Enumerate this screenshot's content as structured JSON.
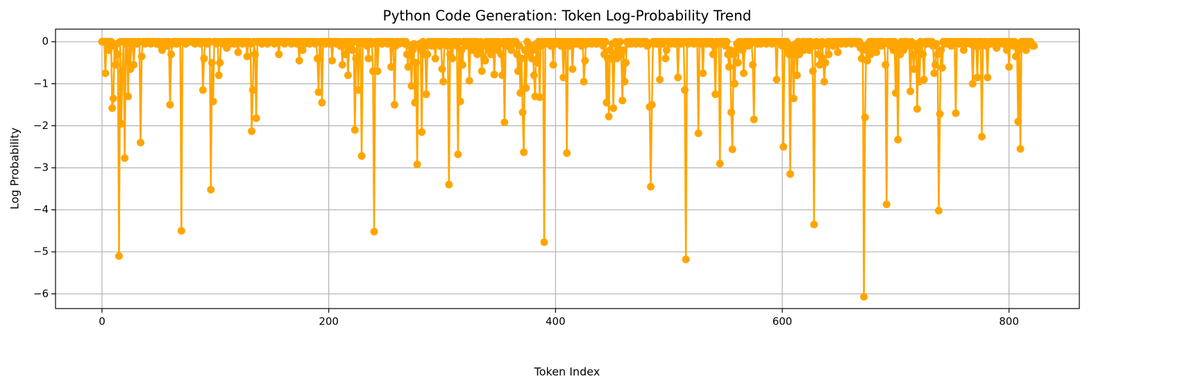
{
  "chart_data": {
    "type": "line",
    "title": "Python Code Generation: Token Log-Probability Trend",
    "xlabel": "Token Index",
    "ylabel": "Log Probability",
    "color": "#ffa500",
    "grid": true,
    "xlim": [
      -41,
      862
    ],
    "xticks": [
      0,
      200,
      400,
      600,
      800
    ],
    "ylim": [
      -6.35,
      0.3
    ],
    "yticks": [
      0,
      {
        "value": -1,
        "label": "−1"
      },
      {
        "value": -2,
        "label": "−2"
      },
      {
        "value": -3,
        "label": "−3"
      },
      {
        "value": -4,
        "label": "−4"
      },
      {
        "value": -5,
        "label": "−5"
      },
      {
        "value": -6,
        "label": "−6"
      }
    ],
    "values": [
      0,
      0,
      0,
      -0.75,
      0,
      0,
      -0.2,
      0,
      0,
      -1.58,
      -1.35,
      -0.1,
      -0.55,
      -0.05,
      -0.3,
      -5.1,
      0,
      -1.95,
      -0.7,
      0,
      -2.77,
      -0.05,
      0,
      -1.3,
      0,
      -0.65,
      -0.05,
      0,
      -0.55,
      0,
      0,
      -0.05,
      0,
      0,
      -2.4,
      -0.35,
      0,
      0,
      -0.05,
      0,
      0,
      0,
      0,
      -0.05,
      0,
      0,
      0,
      0,
      -0.05,
      0,
      0,
      0,
      -0.1,
      -0.2,
      0,
      -0.05,
      0,
      0,
      -0.1,
      0,
      -1.5,
      -0.3,
      -0.05,
      0,
      0,
      0,
      -0.05,
      0,
      0,
      0,
      -4.5,
      0,
      0,
      0,
      -0.05,
      0,
      0,
      0,
      0,
      0,
      0,
      0,
      -0.05,
      0,
      0,
      0,
      0,
      -0.05,
      0,
      -1.15,
      -0.4,
      0,
      0,
      -0.05,
      0,
      0,
      -3.52,
      -0.5,
      -1.42,
      0,
      0,
      -0.05,
      0,
      -0.8,
      -0.5,
      0,
      0,
      -0.05,
      0,
      0,
      -0.15,
      0,
      0,
      -0.05,
      0,
      0,
      0,
      -0.05,
      0,
      0,
      -0.25,
      0,
      0,
      0,
      -0.05,
      0,
      0,
      0,
      -0.35,
      0,
      0,
      -0.05,
      -2.13,
      -1.15,
      0,
      -0.3,
      -1.82,
      0,
      0,
      0,
      0,
      -0.05,
      0,
      0,
      0,
      0,
      -0.05,
      0,
      0,
      0,
      0,
      0,
      -0.05,
      0,
      0,
      0,
      -0.3,
      0,
      0,
      0,
      0,
      -0.05,
      0,
      0,
      0,
      0,
      0,
      -0.05,
      0,
      0,
      0,
      0,
      -0.05,
      0,
      -0.45,
      0,
      0,
      -0.2,
      0,
      -0.05,
      0,
      0,
      0,
      -0.05,
      0,
      0,
      0,
      0,
      -0.05,
      0,
      -0.4,
      -1.2,
      0,
      0,
      -1.45,
      0,
      0,
      -0.05,
      0,
      0,
      0,
      -0.05,
      0,
      -0.45,
      0,
      0,
      0,
      -0.05,
      0,
      0,
      -0.1,
      0,
      -0.55,
      -0.05,
      0,
      -0.3,
      0,
      -0.8,
      -0.1,
      0,
      -0.05,
      -0.2,
      0,
      -2.1,
      -0.4,
      0,
      -1.15,
      -0.05,
      0,
      -2.72,
      0,
      -0.05,
      0,
      0,
      -0.1,
      -0.4,
      0,
      -0.05,
      0,
      -0.7,
      -4.52,
      -0.05,
      0,
      -0.7,
      0,
      0,
      0,
      -0.05,
      0,
      0,
      0,
      0,
      -0.05,
      0,
      0,
      -0.6,
      0,
      0,
      -1.5,
      -0.1,
      0,
      0,
      -0.05,
      0,
      0,
      0,
      0,
      -0.05,
      0,
      -0.3,
      -0.6,
      -0.1,
      -0.3,
      -1.05,
      -0.2,
      -0.05,
      -1.45,
      -0.5,
      -2.92,
      -0.1,
      -0.05,
      -0.2,
      -2.15,
      0,
      -0.3,
      -0.1,
      -1.25,
      -0.3,
      0,
      -0.05,
      0,
      -0.1,
      0,
      0,
      -0.4,
      0,
      -0.05,
      0,
      -0.1,
      0,
      -0.65,
      -0.95,
      0,
      -0.05,
      0,
      -0.1,
      -3.4,
      -0.3,
      0,
      -0.4,
      0,
      -0.05,
      0,
      -0.1,
      -2.68,
      0,
      -1.42,
      -0.2,
      -0.55,
      0,
      -0.05,
      0,
      -0.1,
      0,
      -0.93,
      0,
      -0.05,
      -0.2,
      0,
      -0.1,
      0,
      -0.3,
      -0.05,
      -0.2,
      0,
      -0.7,
      -0.1,
      -0.4,
      -0.45,
      0,
      -0.05,
      -0.2,
      0,
      -0.3,
      -0.1,
      0,
      -0.78,
      -0.05,
      0,
      -0.2,
      0,
      -0.05,
      -0.3,
      -0.8,
      0,
      -1.92,
      -0.1,
      0,
      -0.05,
      0,
      -0.1,
      -0.2,
      0,
      -0.05,
      0,
      0,
      -0.3,
      -0.7,
      -0.1,
      -1.22,
      -0.4,
      -1.68,
      -2.63,
      -0.2,
      -1.1,
      0,
      -0.05,
      -0.3,
      -0.1,
      -0.4,
      -0.2,
      -0.8,
      -1.3,
      -0.05,
      -0.5,
      0,
      -1.32,
      -0.1,
      0,
      -0.05,
      -4.77,
      0,
      0,
      -0.05,
      0,
      0,
      -0.1,
      0,
      -0.55,
      0,
      0,
      -0.05,
      0,
      0,
      0,
      -0.1,
      0,
      -0.85,
      0,
      -0.05,
      -2.65,
      0,
      -0.1,
      0,
      -0.05,
      -0.65,
      0,
      0,
      -0.05,
      0,
      0,
      -0.05,
      0,
      -0.1,
      0,
      -0.95,
      -0.45,
      0,
      -0.05,
      0,
      0,
      0,
      -0.05,
      0,
      0,
      0,
      -0.05,
      0,
      0,
      0,
      -0.05,
      0,
      -0.1,
      -0.3,
      0,
      -1.45,
      -0.4,
      -1.78,
      -0.2,
      -0.4,
      -0.05,
      -1.58,
      -0.3,
      0,
      -0.4,
      -0.05,
      -0.2,
      0,
      -0.3,
      -1.4,
      -0.2,
      -0.95,
      -0.5,
      0,
      -0.05,
      0,
      0,
      -0.05,
      0,
      0,
      0,
      -0.05,
      0,
      0,
      0,
      -0.05,
      0,
      0,
      0,
      -0.05,
      0,
      -0.1,
      -0.05,
      -1.55,
      -3.45,
      -1.5,
      0,
      -0.05,
      0,
      0,
      -0.05,
      0,
      -0.9,
      0,
      -0.05,
      0,
      0,
      -0.4,
      -0.2,
      0,
      0,
      -0.05,
      0,
      0,
      0,
      -0.05,
      0,
      0,
      -0.85,
      0,
      0,
      -0.05,
      0,
      0,
      -1.15,
      -5.18,
      0,
      -0.05,
      0,
      0,
      0,
      0,
      -0.05,
      0,
      0,
      0,
      -2.18,
      0,
      -0.05,
      0,
      -0.75,
      0,
      0,
      -0.05,
      0,
      0,
      0,
      -0.05,
      0,
      -0.3,
      -0.1,
      -1.25,
      0,
      -0.05,
      0,
      -2.9,
      0,
      0,
      -0.05,
      0,
      -0.1,
      0,
      -0.3,
      -0.6,
      -0.2,
      -1.68,
      -2.56,
      -0.3,
      -1.0,
      -0.2,
      -0.05,
      -0.5,
      0,
      -0.1,
      0,
      -0.2,
      -0.75,
      0,
      -0.05,
      0,
      -0.1,
      0,
      -0.05,
      0,
      -0.55,
      -1.85,
      0,
      0,
      -0.05,
      0,
      0,
      -0.05,
      0,
      0,
      0,
      0,
      -0.05,
      0,
      0,
      0,
      0,
      -0.05,
      0,
      0,
      0,
      -0.9,
      0,
      0,
      -0.05,
      0,
      -0.1,
      -2.5,
      0,
      -0.05,
      0,
      -0.2,
      -0.3,
      -3.15,
      -0.1,
      -0.3,
      -1.35,
      -0.2,
      -0.05,
      -0.8,
      0,
      -0.3,
      -0.05,
      -0.1,
      0,
      -0.2,
      0,
      -0.05,
      -0.1,
      0,
      -0.2,
      0,
      -0.05,
      -0.7,
      -4.35,
      -0.1,
      0,
      -0.05,
      -0.3,
      -0.55,
      -0.1,
      0,
      -0.4,
      -0.95,
      -0.5,
      -0.05,
      0,
      -0.3,
      0,
      -0.05,
      0,
      -0.1,
      0,
      -0.05,
      0,
      -0.25,
      0,
      0,
      -0.05,
      0,
      0,
      0,
      -0.05,
      0,
      0,
      0,
      0,
      -0.05,
      0,
      0,
      0,
      0,
      -0.05,
      0,
      0,
      -0.15,
      -0.4,
      -0.1,
      -6.07,
      -1.8,
      -0.2,
      -0.45,
      -0.05,
      0,
      -0.3,
      0,
      -0.05,
      0,
      -0.2,
      -0.25,
      0,
      -0.05,
      0,
      -0.1,
      0,
      0,
      -0.05,
      -0.55,
      -3.87,
      0,
      -0.05,
      0,
      -0.1,
      0,
      -0.2,
      0,
      -1.22,
      -0.2,
      -2.33,
      -0.1,
      -0.3,
      0,
      -0.05,
      -0.2,
      0,
      -0.05,
      0,
      -0.05,
      -0.1,
      -1.18,
      0,
      -0.3,
      -0.65,
      -0.1,
      -0.05,
      -1.6,
      -0.2,
      -0.95,
      0,
      -0.05,
      -0.3,
      -0.9,
      0,
      -0.05,
      0,
      0,
      -0.05,
      0,
      0,
      -0.1,
      -0.75,
      -0.55,
      -0.05,
      -0.3,
      -4.02,
      -1.72,
      -0.2,
      -0.62,
      0,
      -0.05,
      0,
      0,
      -0.05,
      0,
      0,
      -0.1,
      0,
      -0.05,
      0,
      -1.7,
      0,
      0,
      -0.05,
      0,
      0,
      0,
      -0.2,
      0,
      -0.05,
      0,
      0,
      0,
      -0.05,
      0,
      -1.0,
      -0.1,
      0,
      -0.05,
      -0.85,
      0,
      -0.1,
      0,
      -2.26,
      -0.05,
      0,
      0,
      -0.1,
      -0.85,
      0,
      -0.05,
      0,
      0,
      -0.05,
      0,
      0,
      -0.15,
      0,
      -0.05,
      0,
      0,
      0,
      -0.05,
      0,
      0,
      -0.2,
      0,
      -0.6,
      0,
      -0.05,
      0,
      -0.1,
      0,
      -0.35,
      -0.05,
      -1.9,
      -0.2,
      -2.55,
      0,
      -0.05,
      0,
      0,
      -0.2,
      0,
      -0.05,
      0,
      0,
      -0.05,
      -0.1,
      -0.1
    ]
  }
}
